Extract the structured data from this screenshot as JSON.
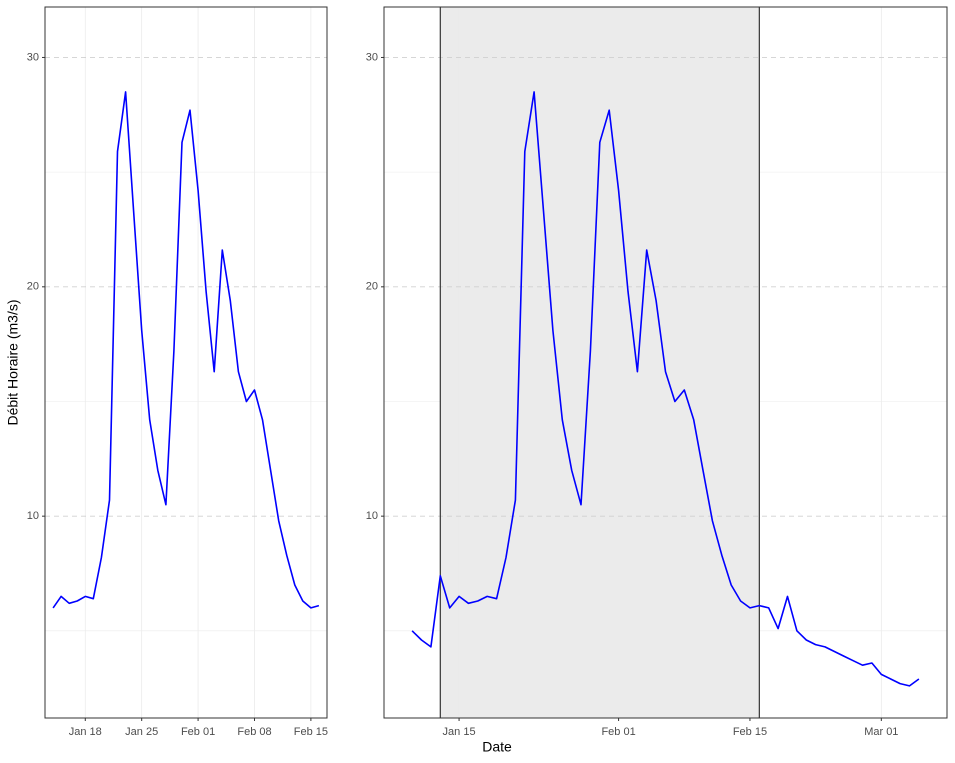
{
  "chart_data": [
    {
      "type": "line",
      "y_label": "Débit Horaire (m3/s)",
      "x": [
        "Jan 14",
        "Jan 15",
        "Jan 16",
        "Jan 17",
        "Jan 18",
        "Jan 19",
        "Jan 20",
        "Jan 21",
        "Jan 22",
        "Jan 23",
        "Jan 24",
        "Jan 25",
        "Jan 26",
        "Jan 27",
        "Jan 28",
        "Jan 29",
        "Jan 30",
        "Jan 31",
        "Feb 01",
        "Feb 02",
        "Feb 03",
        "Feb 04",
        "Feb 05",
        "Feb 06",
        "Feb 07",
        "Feb 08",
        "Feb 09",
        "Feb 10",
        "Feb 11",
        "Feb 12",
        "Feb 13",
        "Feb 14",
        "Feb 15",
        "Feb 16"
      ],
      "series": [
        {
          "color": "#0000ff",
          "values": [
            6.0,
            6.5,
            6.2,
            6.3,
            6.5,
            6.4,
            8.2,
            10.7,
            25.9,
            28.5,
            23.3,
            18.1,
            14.2,
            12.0,
            10.5,
            17.2,
            26.3,
            27.7,
            24.2,
            19.8,
            16.3,
            21.6,
            19.4,
            16.3,
            15.0,
            15.5,
            14.2,
            12.0,
            9.8,
            8.3,
            7.0,
            6.3,
            6.0,
            6.1
          ]
        }
      ],
      "xlim": [
        "Jan 13",
        "Feb 17"
      ],
      "xticks": [
        "Jan 18",
        "Jan 25",
        "Feb 01",
        "Feb 08",
        "Feb 15"
      ],
      "ylim": [
        1.2,
        32.2
      ],
      "yticks": [
        10,
        20,
        30
      ],
      "minor_yticks": [
        5,
        15,
        25
      ],
      "grid": true
    },
    {
      "type": "line",
      "x_label": "Date",
      "x": [
        "Jan 10",
        "Jan 11",
        "Jan 12",
        "Jan 13",
        "Jan 14",
        "Jan 15",
        "Jan 16",
        "Jan 17",
        "Jan 18",
        "Jan 19",
        "Jan 20",
        "Jan 21",
        "Jan 22",
        "Jan 23",
        "Jan 24",
        "Jan 25",
        "Jan 26",
        "Jan 27",
        "Jan 28",
        "Jan 29",
        "Jan 30",
        "Jan 31",
        "Feb 01",
        "Feb 02",
        "Feb 03",
        "Feb 04",
        "Feb 05",
        "Feb 06",
        "Feb 07",
        "Feb 08",
        "Feb 09",
        "Feb 10",
        "Feb 11",
        "Feb 12",
        "Feb 13",
        "Feb 14",
        "Feb 15",
        "Feb 16",
        "Feb 17",
        "Feb 18",
        "Feb 19",
        "Feb 20",
        "Feb 21",
        "Feb 22",
        "Feb 23",
        "Feb 24",
        "Feb 25",
        "Feb 26",
        "Feb 27",
        "Feb 28",
        "Mar 01",
        "Mar 02",
        "Mar 03",
        "Mar 04",
        "Mar 05"
      ],
      "series": [
        {
          "color": "#0000ff",
          "values": [
            5.0,
            4.6,
            4.3,
            7.4,
            6.0,
            6.5,
            6.2,
            6.3,
            6.5,
            6.4,
            8.2,
            10.7,
            25.9,
            28.5,
            23.3,
            18.1,
            14.2,
            12.0,
            10.5,
            17.2,
            26.3,
            27.7,
            24.2,
            19.8,
            16.3,
            21.6,
            19.4,
            16.3,
            15.0,
            15.5,
            14.2,
            12.0,
            9.8,
            8.3,
            7.0,
            6.3,
            6.0,
            6.1,
            6.0,
            5.1,
            6.5,
            5.0,
            4.6,
            4.4,
            4.3,
            4.1,
            3.9,
            3.7,
            3.5,
            3.6,
            3.1,
            2.9,
            2.7,
            2.6,
            2.9
          ]
        }
      ],
      "highlight": [
        "Jan 13",
        "Feb 16"
      ],
      "xlim": [
        "Jan 07",
        "Mar 08"
      ],
      "xticks": [
        "Jan 15",
        "Feb 01",
        "Feb 15",
        "Mar 01"
      ],
      "ylim": [
        1.2,
        32.2
      ],
      "yticks": [
        10,
        20,
        30
      ],
      "minor_yticks": [
        5,
        15,
        25
      ],
      "grid": true
    }
  ]
}
